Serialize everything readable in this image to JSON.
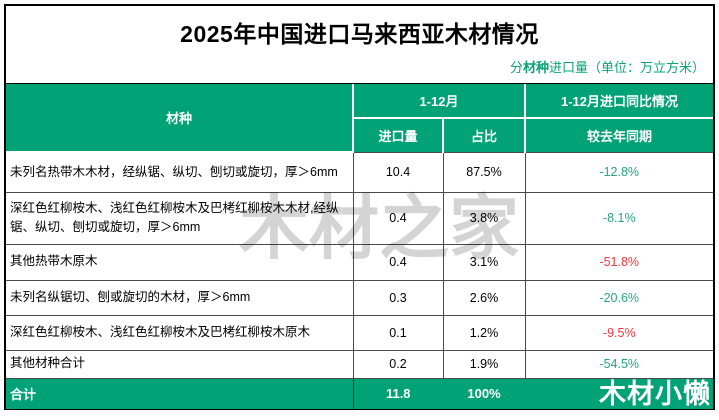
{
  "title": "2025年中国进口马来西亚木材情况",
  "subtitle": {
    "prefix": "分",
    "bold": "材种",
    "rest": "进口量（单位：万立方米）"
  },
  "header": {
    "col_species": "材种",
    "col_period": "1-12月",
    "col_volume": "进口量",
    "col_share": "占比",
    "col_yoy": "1-12月进口同比情况",
    "col_vs": "较去年同期"
  },
  "rows": [
    {
      "species": "未列名热带木木材，经纵锯、纵切、刨切或旋切，厚＞6mm",
      "volume": "10.4",
      "share": "87.5%",
      "change": "-12.8%",
      "change_color": "#27a57c"
    },
    {
      "species": "深红色红柳桉木、浅红色红柳桉木及巴栲红柳桉木木材,经纵锯、纵切、刨切或旋切，厚＞6mm",
      "volume": "0.4",
      "share": "3.8%",
      "change": "-8.1%",
      "change_color": "#27a57c"
    },
    {
      "species": "其他热带木原木",
      "volume": "0.4",
      "share": "3.1%",
      "change": "-51.8%",
      "change_color": "#ea3a40"
    },
    {
      "species": "未列名纵锯切、刨或旋切的木材，厚＞6mm",
      "volume": "0.3",
      "share": "2.6%",
      "change": "-20.6%",
      "change_color": "#27a57c"
    },
    {
      "species": "深红色红柳桉木、浅红色红柳桉木及巴栲红柳桉木原木",
      "volume": "0.1",
      "share": "1.2%",
      "change": "-9.5%",
      "change_color": "#ea3a40"
    },
    {
      "species": "其他材种合计",
      "volume": "0.2",
      "share": "1.9%",
      "change": "-54.5%",
      "change_color": "#27a57c"
    }
  ],
  "total": {
    "label": "合计",
    "volume": "11.8",
    "share": "100%",
    "brand": "木材小懒"
  },
  "watermark": "木材之家",
  "colors": {
    "accent_green": "#00a276",
    "trend_green": "#27a57c",
    "trend_red": "#ea3a40",
    "watermark_gray": "#d4d4d4"
  }
}
